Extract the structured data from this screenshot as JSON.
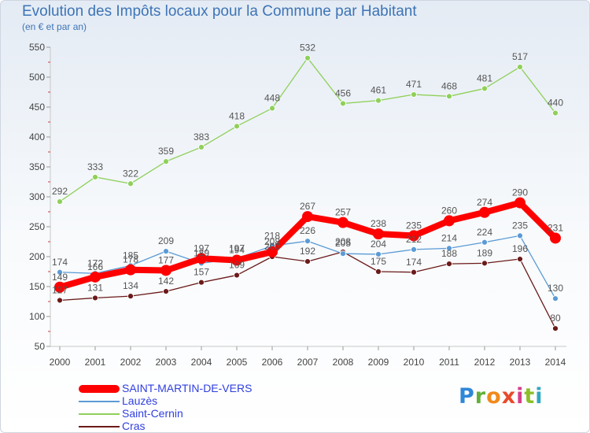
{
  "title": "Evolution des Impôts locaux pour la Commune par Habitant",
  "subtitle": "(en € et par an)",
  "logo": {
    "text": "Proxiti",
    "letters": [
      "P",
      "r",
      "o",
      "x",
      "i",
      "t",
      "i"
    ]
  },
  "chart_data": {
    "type": "line",
    "title": "Evolution des Impôts locaux pour la Commune par Habitant",
    "subtitle": "(en € et par an)",
    "xlabel": "",
    "ylabel": "",
    "x": [
      "2000",
      "2001",
      "2002",
      "2003",
      "2004",
      "2005",
      "2006",
      "2007",
      "2008",
      "2009",
      "2010",
      "2011",
      "2012",
      "2013",
      "2014"
    ],
    "ylim": [
      50,
      550
    ],
    "yticks": [
      50,
      100,
      150,
      200,
      250,
      300,
      350,
      400,
      450,
      500,
      550
    ],
    "grid": false,
    "legend_position": "bottom-left",
    "series": [
      {
        "name": "SAINT-MARTIN-DE-VERS",
        "color": "#ff0000",
        "emphasis": true,
        "values": [
          149,
          166,
          178,
          177,
          197,
          194,
          208,
          267,
          257,
          238,
          235,
          260,
          274,
          290,
          231
        ]
      },
      {
        "name": "Lauzès",
        "color": "#5b9bd5",
        "emphasis": false,
        "values": [
          174,
          172,
          185,
          209,
          189,
          197,
          218,
          226,
          205,
          204,
          212,
          214,
          224,
          235,
          130
        ]
      },
      {
        "name": "Saint-Cernin",
        "color": "#8fd05a",
        "emphasis": false,
        "values": [
          292,
          333,
          322,
          359,
          383,
          418,
          448,
          532,
          456,
          461,
          471,
          468,
          481,
          517,
          440
        ]
      },
      {
        "name": "Cras",
        "color": "#6b1a1a",
        "emphasis": false,
        "values": [
          127,
          131,
          134,
          142,
          157,
          169,
          200,
          192,
          208,
          175,
          174,
          188,
          189,
          196,
          80
        ]
      }
    ]
  }
}
